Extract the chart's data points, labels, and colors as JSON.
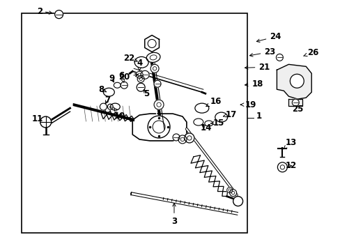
{
  "bg_color": "#ffffff",
  "line_color": "#000000",
  "text_color": "#000000",
  "fig_width": 4.89,
  "fig_height": 3.6,
  "dpi": 100
}
